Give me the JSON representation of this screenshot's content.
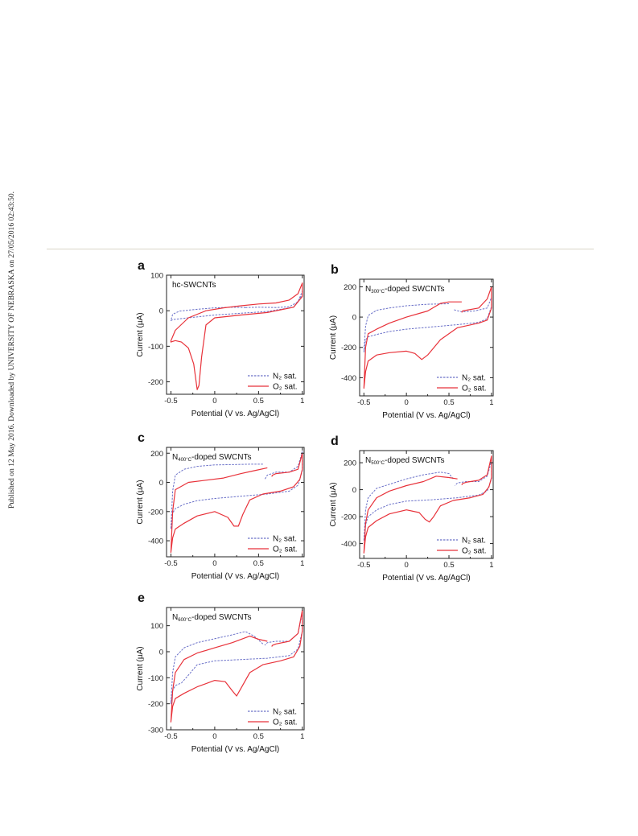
{
  "side_note": "Published on 12 May 2016. Downloaded by UNIVERSITY OF NEBRASKA on 27/05/2016 02:43:50.",
  "colors": {
    "n2": "#6a70c8",
    "o2": "#e8323a",
    "axis": "#222222",
    "divider": "#d8d5c8"
  },
  "chart_data": [
    {
      "type": "line",
      "panel_label": "a",
      "title": "hc-SWCNTs",
      "xlabel": "Potential (V vs. Ag/AgCl)",
      "ylabel": "Current (µA)",
      "xlim": [
        -0.55,
        1.02
      ],
      "ylim": [
        -235,
        100
      ],
      "xticks": [
        -0.5,
        0,
        0.5,
        1
      ],
      "xtick_labels": [
        "-0.5",
        "0",
        "0.5",
        "1"
      ],
      "yticks": [
        100,
        0,
        -100,
        -200
      ],
      "ytick_labels": [
        "100",
        "0",
        "-100",
        "-200"
      ],
      "legend_position": "bottom-right",
      "series": [
        {
          "name": "N₂ sat.",
          "style": "dashed",
          "x": [
            0.35,
            0.5,
            0.7,
            0.85,
            0.95,
            1.0,
            1.0,
            0.9,
            0.6,
            0.3,
            0.0,
            -0.3,
            -0.48,
            -0.5,
            -0.48,
            -0.4,
            -0.2,
            0.0,
            0.2,
            0.35
          ],
          "y": [
            9,
            10,
            9,
            11,
            25,
            55,
            45,
            10,
            -2,
            -7,
            -12,
            -20,
            -25,
            -28,
            -10,
            -1,
            4,
            8,
            10,
            9
          ]
        },
        {
          "name": "O₂ sat.",
          "style": "solid",
          "x": [
            0.5,
            0.7,
            0.85,
            0.95,
            1.0,
            1.0,
            0.9,
            0.6,
            0.3,
            0.0,
            -0.1,
            -0.15,
            -0.18,
            -0.2,
            -0.24,
            -0.3,
            -0.38,
            -0.45,
            -0.5,
            -0.5,
            -0.45,
            -0.3,
            -0.1,
            0.1,
            0.3,
            0.5
          ],
          "y": [
            19,
            22,
            30,
            48,
            78,
            40,
            10,
            -5,
            -12,
            -20,
            -40,
            -130,
            -210,
            -222,
            -150,
            -105,
            -88,
            -84,
            -88,
            -85,
            -55,
            -20,
            0,
            8,
            14,
            19
          ]
        }
      ]
    },
    {
      "type": "line",
      "panel_label": "b",
      "title": "N300°C-doped SWCNTs",
      "title_main": "N",
      "title_sub": "300°C",
      "title_rest": "-doped SWCNTs",
      "xlabel": "Potential (V vs. Ag/AgCl)",
      "ylabel": "Current (µA)",
      "xlim": [
        -0.55,
        1.02
      ],
      "ylim": [
        -520,
        250
      ],
      "xticks": [
        -0.5,
        0,
        0.5,
        1
      ],
      "xtick_labels": [
        "-0.5",
        "0",
        "0.5",
        "1"
      ],
      "yticks": [
        200,
        0,
        -200,
        -400
      ],
      "ytick_labels": [
        "200",
        "0",
        "-200",
        "-400"
      ],
      "legend_position": "bottom-right",
      "series": [
        {
          "name": "N₂ sat.",
          "style": "dashed",
          "x": [
            0.5,
            0.25,
            0.0,
            -0.2,
            -0.35,
            -0.45,
            -0.48,
            -0.5,
            -0.48,
            -0.45,
            -0.35,
            -0.2,
            0.0,
            0.3,
            0.6,
            0.85,
            0.95,
            1.0,
            1.0,
            0.95,
            0.8,
            0.65,
            0.6,
            0.55
          ],
          "y": [
            88,
            85,
            75,
            60,
            45,
            10,
            -60,
            -230,
            -150,
            -130,
            -115,
            -95,
            -80,
            -65,
            -50,
            -35,
            -10,
            70,
            130,
            60,
            40,
            35,
            42,
            50
          ]
        },
        {
          "name": "O₂ sat.",
          "style": "solid",
          "x": [
            0.65,
            0.5,
            0.4,
            0.25,
            0.0,
            -0.2,
            -0.35,
            -0.45,
            -0.48,
            -0.5,
            -0.48,
            -0.45,
            -0.35,
            -0.2,
            0.0,
            0.1,
            0.18,
            0.25,
            0.4,
            0.6,
            0.85,
            0.95,
            1.0,
            1.0,
            0.95,
            0.85,
            0.7,
            0.66,
            0.65
          ],
          "y": [
            100,
            100,
            90,
            40,
            0,
            -40,
            -80,
            -110,
            -200,
            -470,
            -360,
            -290,
            -250,
            -235,
            -225,
            -240,
            -280,
            -250,
            -150,
            -70,
            -40,
            -20,
            60,
            200,
            120,
            60,
            45,
            40,
            30
          ]
        }
      ]
    },
    {
      "type": "line",
      "panel_label": "c",
      "title": "N400°C-doped SWCNTs",
      "title_main": "N",
      "title_sub": "400°C",
      "title_rest": "-doped SWCNTs",
      "xlabel": "Potential (V vs. Ag/AgCl)",
      "ylabel": "Current (µA)",
      "xlim": [
        -0.55,
        1.02
      ],
      "ylim": [
        -510,
        240
      ],
      "xticks": [
        -0.5,
        0,
        0.5,
        1
      ],
      "xtick_labels": [
        "-0.5",
        "0",
        "0.5",
        "1"
      ],
      "yticks": [
        200,
        0,
        -200,
        -400
      ],
      "ytick_labels": [
        "200",
        "0",
        "-200",
        "-400"
      ],
      "legend_position": "bottom-right",
      "series": [
        {
          "name": "N₂ sat.",
          "style": "dashed",
          "x": [
            0.55,
            0.4,
            0.2,
            0.0,
            -0.2,
            -0.35,
            -0.45,
            -0.48,
            -0.5,
            -0.48,
            -0.45,
            -0.35,
            -0.2,
            0.0,
            0.3,
            0.6,
            0.85,
            0.95,
            1.0,
            1.0,
            0.95,
            0.85,
            0.7,
            0.6,
            0.57
          ],
          "y": [
            125,
            125,
            122,
            120,
            110,
            90,
            50,
            -60,
            -320,
            -210,
            -180,
            -150,
            -125,
            -110,
            -95,
            -80,
            -60,
            -20,
            80,
            210,
            110,
            70,
            70,
            50,
            20
          ]
        },
        {
          "name": "O₂ sat.",
          "style": "solid",
          "x": [
            0.6,
            0.45,
            0.3,
            0.1,
            -0.1,
            -0.3,
            -0.45,
            -0.48,
            -0.5,
            -0.48,
            -0.45,
            -0.35,
            -0.2,
            0.0,
            0.15,
            0.22,
            0.27,
            0.32,
            0.4,
            0.55,
            0.75,
            0.9,
            0.97,
            1.0,
            1.0,
            0.95,
            0.85,
            0.7,
            0.66,
            0.65
          ],
          "y": [
            100,
            80,
            60,
            30,
            15,
            0,
            -50,
            -200,
            -480,
            -380,
            -320,
            -280,
            -230,
            -200,
            -240,
            -300,
            -300,
            -220,
            -120,
            -80,
            -60,
            -30,
            20,
            90,
            200,
            90,
            70,
            60,
            50,
            40
          ]
        }
      ]
    },
    {
      "type": "line",
      "panel_label": "d",
      "title": "N500°C-doped SWCNTs",
      "title_main": "N",
      "title_sub": "500°C",
      "title_rest": "-doped SWCNTs",
      "xlabel": "Potential (V vs. Ag/AgCl)",
      "ylabel": "Current (µA)",
      "xlim": [
        -0.55,
        1.02
      ],
      "ylim": [
        -510,
        290
      ],
      "xticks": [
        -0.5,
        0,
        0.5,
        1
      ],
      "xtick_labels": [
        "-0.5",
        "0",
        "0.5",
        "1"
      ],
      "yticks": [
        200,
        0,
        -200,
        -400
      ],
      "ytick_labels": [
        "200",
        "0",
        "-200",
        "-400"
      ],
      "legend_position": "bottom-right",
      "series": [
        {
          "name": "N₂ sat.",
          "style": "dashed",
          "x": [
            0.55,
            0.5,
            0.4,
            0.2,
            0.0,
            -0.2,
            -0.35,
            -0.45,
            -0.48,
            -0.5,
            -0.48,
            -0.45,
            -0.35,
            -0.2,
            0.0,
            0.3,
            0.6,
            0.85,
            0.95,
            1.0,
            1.0,
            0.95,
            0.85,
            0.7,
            0.6,
            0.57
          ],
          "y": [
            80,
            120,
            130,
            110,
            80,
            40,
            10,
            -60,
            -150,
            -380,
            -260,
            -200,
            -150,
            -110,
            -85,
            -75,
            -60,
            -40,
            -10,
            80,
            210,
            100,
            60,
            60,
            50,
            30
          ]
        },
        {
          "name": "O₂ sat.",
          "style": "solid",
          "x": [
            0.6,
            0.5,
            0.35,
            0.2,
            0.0,
            -0.2,
            -0.35,
            -0.45,
            -0.48,
            -0.5,
            -0.48,
            -0.45,
            -0.35,
            -0.2,
            0.0,
            0.15,
            0.22,
            0.27,
            0.32,
            0.4,
            0.55,
            0.75,
            0.9,
            0.97,
            1.0,
            1.0,
            0.95,
            0.85,
            0.7,
            0.66,
            0.65
          ],
          "y": [
            80,
            90,
            100,
            60,
            30,
            -10,
            -60,
            -150,
            -250,
            -470,
            -350,
            -280,
            -230,
            -180,
            -150,
            -170,
            -220,
            -240,
            -200,
            -120,
            -80,
            -60,
            -35,
            20,
            90,
            250,
            110,
            70,
            55,
            45,
            35
          ]
        }
      ]
    },
    {
      "type": "line",
      "panel_label": "e",
      "title": "N600°C-doped SWCNTs",
      "title_main": "N",
      "title_sub": "600°C",
      "title_rest": "-doped SWCNTs",
      "xlabel": "Potential (V vs. Ag/AgCl)",
      "ylabel": "Current (µA)",
      "xlim": [
        -0.55,
        1.02
      ],
      "ylim": [
        -300,
        170
      ],
      "xticks": [
        -0.5,
        0,
        0.5,
        1
      ],
      "xtick_labels": [
        "-0.5",
        "0",
        "0.5",
        "1"
      ],
      "yticks": [
        100,
        0,
        -100,
        -200,
        -300
      ],
      "ytick_labels": [
        "100",
        "0",
        "-100",
        "-200",
        "-300"
      ],
      "legend_position": "bottom-right",
      "series": [
        {
          "name": "N₂ sat.",
          "style": "dashed",
          "x": [
            0.55,
            0.45,
            0.35,
            0.2,
            0.0,
            -0.2,
            -0.35,
            -0.45,
            -0.48,
            -0.5,
            -0.48,
            -0.45,
            -0.38,
            -0.3,
            -0.2,
            0.0,
            0.3,
            0.6,
            0.85,
            0.95,
            1.0,
            1.0,
            0.95,
            0.85,
            0.7,
            0.6,
            0.57
          ],
          "y": [
            30,
            60,
            78,
            65,
            50,
            35,
            15,
            -20,
            -80,
            -200,
            -150,
            -130,
            -120,
            -90,
            -50,
            -35,
            -30,
            -25,
            -15,
            10,
            80,
            150,
            70,
            40,
            40,
            35,
            25
          ]
        },
        {
          "name": "O₂ sat.",
          "style": "solid",
          "x": [
            0.6,
            0.5,
            0.4,
            0.2,
            0.0,
            -0.2,
            -0.35,
            -0.45,
            -0.48,
            -0.5,
            -0.48,
            -0.45,
            -0.35,
            -0.2,
            0.0,
            0.12,
            0.2,
            0.25,
            0.3,
            0.4,
            0.55,
            0.75,
            0.9,
            0.97,
            1.0,
            1.0,
            0.95,
            0.85,
            0.7,
            0.66,
            0.65
          ],
          "y": [
            40,
            48,
            60,
            35,
            15,
            -5,
            -30,
            -80,
            -150,
            -270,
            -210,
            -180,
            -160,
            -135,
            -110,
            -115,
            -150,
            -170,
            -140,
            -80,
            -50,
            -35,
            -20,
            20,
            80,
            160,
            70,
            40,
            30,
            25,
            20
          ]
        }
      ]
    }
  ]
}
